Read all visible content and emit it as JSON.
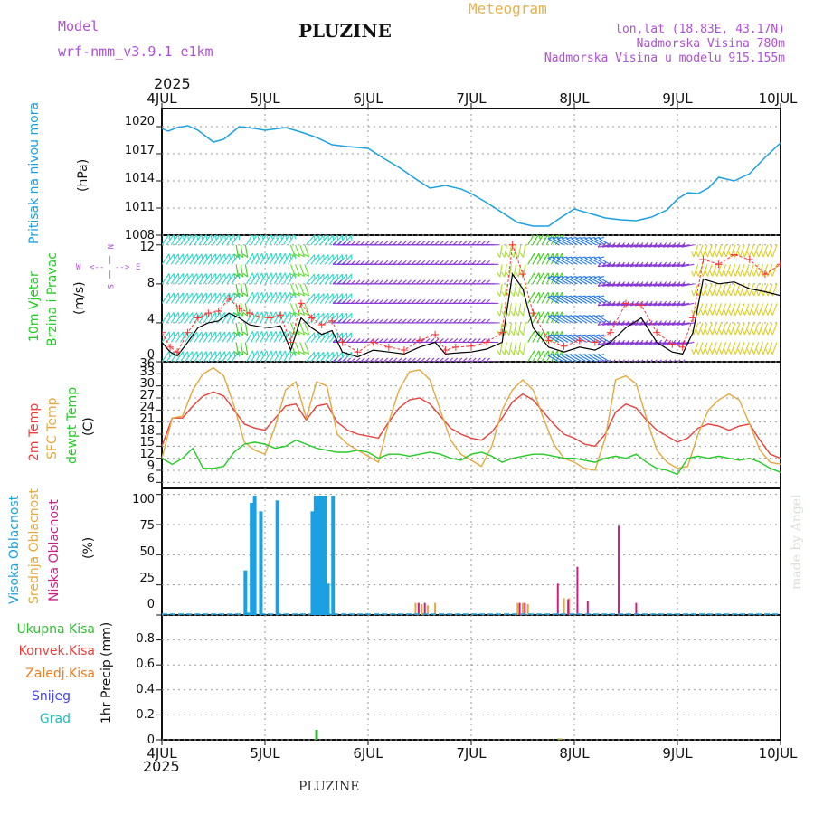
{
  "header": {
    "model_label": "Model",
    "model_name": "wrf-nmm_v3.9.1 e1km",
    "station_title": "PLUZINE",
    "product": "Meteogram",
    "lonlat": "lon,lat (18.83E, 43.17N)",
    "elevation": "Nadmorska Visina 780m",
    "model_elevation": "Nadmorska Visina u modelu 915.155m",
    "year_top": "2025",
    "year_bottom": "2025",
    "footer_station": "PLUZINE",
    "watermark": "made by Angel"
  },
  "colors": {
    "pressure": "#1ba1e2",
    "temp2m": "#e8413c",
    "sfc_temp": "#e6a83e",
    "dewpt": "#22cc22",
    "wind_speed": "#000000",
    "wind_gust": "#ff3030",
    "high_cloud": "#1ba1e2",
    "mid_cloud": "#e6a83e",
    "low_cloud": "#cc1f86",
    "total_precip": "#33bb33",
    "conv_precip": "#e8413c",
    "frz_precip": "#f07b1c",
    "snow": "#4444ee",
    "graupel": "#22bbbb",
    "purple_text": "#b04fd8",
    "title_gold": "#e8b04a"
  },
  "chart_data": [
    {
      "type": "line",
      "panel": "pressure",
      "ylabel_left": "Pritisak na nivou mora",
      "ylabel_unit": "(hPa)",
      "x_ticks": [
        "4JUL",
        "5JUL",
        "6JUL",
        "7JUL",
        "8JUL",
        "9JUL",
        "10JUL"
      ],
      "x_range_days": [
        0,
        6
      ],
      "ylim": [
        1008,
        1022
      ],
      "y_ticks": [
        "1008",
        "1011",
        "1014",
        "1017",
        "1020"
      ],
      "y_tick_values": [
        1008,
        1011,
        1014,
        1017,
        1020
      ],
      "grid": true,
      "series": [
        {
          "key": "pressure",
          "color_key": "pressure",
          "x": [
            0.0,
            0.06,
            0.15,
            0.25,
            0.35,
            0.5,
            0.6,
            0.75,
            0.9,
            1.0,
            1.2,
            1.35,
            1.5,
            1.65,
            1.8,
            2.0,
            2.15,
            2.3,
            2.45,
            2.6,
            2.75,
            2.9,
            3.0,
            3.15,
            3.3,
            3.45,
            3.6,
            3.75,
            3.85,
            4.0,
            4.15,
            4.3,
            4.45,
            4.6,
            4.75,
            4.9,
            5.0,
            5.1,
            5.2,
            5.3,
            5.4,
            5.55,
            5.7,
            5.85,
            6.0
          ],
          "y": [
            1019.8,
            1019.5,
            1019.9,
            1020.1,
            1019.6,
            1018.3,
            1018.6,
            1020.0,
            1019.8,
            1019.6,
            1019.9,
            1019.4,
            1018.8,
            1018.0,
            1017.8,
            1017.6,
            1016.5,
            1015.5,
            1014.3,
            1013.2,
            1013.5,
            1013.1,
            1012.6,
            1011.6,
            1010.5,
            1009.4,
            1009.0,
            1009.0,
            1009.8,
            1010.9,
            1010.4,
            1009.9,
            1009.7,
            1009.6,
            1010.0,
            1010.8,
            1012.0,
            1012.7,
            1012.6,
            1013.2,
            1014.4,
            1014.0,
            1014.8,
            1016.6,
            1018.2
          ]
        }
      ]
    },
    {
      "type": "line",
      "panel": "wind",
      "ylabel_left1": "10m Vjetar",
      "ylabel_left2": "Brzina i Pravac",
      "ylabel_unit": "(m/s)",
      "compass": {
        "n": "N",
        "s": "S",
        "e": "E",
        "w": "W",
        "arrow_w": "<--",
        "arrow_e": "-->",
        "bar": "|"
      },
      "ylim": [
        0,
        13
      ],
      "y_ticks": [
        "0",
        "4",
        "8",
        "12"
      ],
      "y_tick_values": [
        0,
        4,
        8,
        12
      ],
      "grid": true,
      "barb_levels": [
        0,
        2,
        4,
        6,
        8,
        10,
        12
      ],
      "barb_bands": [
        {
          "range": [
            0.0,
            0.72
          ],
          "dir_deg": 35,
          "color": "#2ad8c8"
        },
        {
          "range": [
            0.72,
            0.82
          ],
          "dir_deg": 170,
          "color": "#44cc22"
        },
        {
          "range": [
            0.82,
            1.25
          ],
          "dir_deg": 30,
          "color": "#2ad8c8"
        },
        {
          "range": [
            1.25,
            1.4
          ],
          "dir_deg": 160,
          "color": "#66dd33"
        },
        {
          "range": [
            1.4,
            1.78
          ],
          "dir_deg": 40,
          "color": "#2ad8c8"
        },
        {
          "range": [
            1.78,
            3.3
          ],
          "dir_deg": 270,
          "color": "#8a3ad8"
        },
        {
          "range": [
            3.3,
            3.55
          ],
          "dir_deg": 190,
          "color": "#aadd33"
        },
        {
          "range": [
            3.55,
            3.85
          ],
          "dir_deg": 30,
          "color": "#44cc22"
        },
        {
          "range": [
            3.85,
            4.35
          ],
          "dir_deg": 300,
          "color": "#2277ee"
        },
        {
          "range": [
            4.35,
            5.2
          ],
          "dir_deg": 260,
          "color": "#8a3ad8"
        },
        {
          "range": [
            5.2,
            6.0
          ],
          "dir_deg": 200,
          "color": "#ddcc22"
        }
      ],
      "series": [
        {
          "key": "wind_speed",
          "color_key": "wind_speed",
          "x": [
            0.0,
            0.08,
            0.15,
            0.25,
            0.35,
            0.45,
            0.55,
            0.65,
            0.75,
            0.85,
            0.95,
            1.05,
            1.15,
            1.25,
            1.35,
            1.45,
            1.55,
            1.65,
            1.75,
            1.9,
            2.05,
            2.2,
            2.35,
            2.5,
            2.65,
            2.75,
            2.85,
            3.0,
            3.15,
            3.3,
            3.4,
            3.5,
            3.6,
            3.75,
            3.9,
            4.05,
            4.2,
            4.35,
            4.5,
            4.65,
            4.8,
            4.95,
            5.05,
            5.15,
            5.25,
            5.4,
            5.55,
            5.7,
            5.85,
            6.0
          ],
          "y": [
            2.0,
            1.0,
            0.6,
            2.0,
            3.5,
            4.0,
            4.2,
            5.0,
            4.5,
            3.8,
            3.6,
            3.5,
            3.7,
            1.2,
            4.5,
            3.5,
            2.8,
            3.2,
            1.0,
            0.5,
            1.2,
            1.0,
            0.8,
            1.5,
            2.0,
            0.8,
            0.9,
            1.0,
            1.3,
            2.0,
            9.0,
            7.5,
            3.5,
            1.5,
            1.0,
            1.5,
            1.2,
            2.0,
            3.5,
            4.5,
            2.0,
            1.0,
            0.8,
            3.0,
            8.5,
            8.0,
            8.2,
            7.5,
            7.2,
            6.8
          ]
        },
        {
          "key": "wind_gust",
          "color_key": "wind_gust",
          "x": [
            0.0,
            0.08,
            0.15,
            0.25,
            0.35,
            0.45,
            0.55,
            0.65,
            0.75,
            0.85,
            0.95,
            1.05,
            1.15,
            1.25,
            1.35,
            1.45,
            1.55,
            1.65,
            1.75,
            1.9,
            2.05,
            2.2,
            2.35,
            2.5,
            2.65,
            2.75,
            2.85,
            3.0,
            3.15,
            3.3,
            3.4,
            3.5,
            3.6,
            3.75,
            3.9,
            4.05,
            4.2,
            4.35,
            4.5,
            4.65,
            4.8,
            4.95,
            5.05,
            5.15,
            5.25,
            5.4,
            5.55,
            5.7,
            5.85,
            6.0
          ],
          "y": [
            3.0,
            1.5,
            1.0,
            3.0,
            4.5,
            5.0,
            5.2,
            6.5,
            5.5,
            5.0,
            4.6,
            4.5,
            4.8,
            2.0,
            6.0,
            4.5,
            3.8,
            4.2,
            2.0,
            1.0,
            2.0,
            1.5,
            1.2,
            2.2,
            2.8,
            1.2,
            1.5,
            1.6,
            2.0,
            3.0,
            12.0,
            9.0,
            5.0,
            2.2,
            1.6,
            2.2,
            2.0,
            3.0,
            6.0,
            5.8,
            3.0,
            1.8,
            1.5,
            4.5,
            10.5,
            10.0,
            11.0,
            10.5,
            9.0,
            10.0
          ]
        }
      ]
    },
    {
      "type": "line",
      "panel": "temperature",
      "ylabel_left1": "2m Temp",
      "ylabel_left2": "SFC Temp",
      "ylabel_left3": "dewpt Temp",
      "ylabel_unit": "(C)",
      "ylim": [
        4.5,
        36
      ],
      "y_ticks": [
        "6",
        "9",
        "12",
        "15",
        "18",
        "21",
        "24",
        "27",
        "30",
        "33",
        "36"
      ],
      "y_tick_values": [
        6,
        9,
        12,
        15,
        18,
        21,
        24,
        27,
        30,
        33,
        36
      ],
      "grid": true,
      "series": [
        {
          "key": "temp2m",
          "color_key": "temp2m",
          "x": [
            0.0,
            0.1,
            0.2,
            0.3,
            0.4,
            0.5,
            0.6,
            0.7,
            0.8,
            0.9,
            1.0,
            1.1,
            1.2,
            1.3,
            1.4,
            1.5,
            1.6,
            1.7,
            1.8,
            1.9,
            2.0,
            2.1,
            2.2,
            2.3,
            2.4,
            2.5,
            2.6,
            2.7,
            2.8,
            2.9,
            3.0,
            3.1,
            3.2,
            3.3,
            3.4,
            3.5,
            3.6,
            3.7,
            3.8,
            3.9,
            4.0,
            4.1,
            4.2,
            4.3,
            4.4,
            4.5,
            4.6,
            4.7,
            4.8,
            4.9,
            5.0,
            5.1,
            5.2,
            5.3,
            5.4,
            5.5,
            5.6,
            5.7,
            5.8,
            5.9,
            6.0
          ],
          "y": [
            15.0,
            22.0,
            22.0,
            25.0,
            27.5,
            28.5,
            27.5,
            24.0,
            20.5,
            19.5,
            19.0,
            22.0,
            25.0,
            25.5,
            21.5,
            25.0,
            25.5,
            21.0,
            19.0,
            18.0,
            17.5,
            17.0,
            21.0,
            24.5,
            26.5,
            27.0,
            25.5,
            22.5,
            19.5,
            18.0,
            17.0,
            16.5,
            18.5,
            22.0,
            26.0,
            28.0,
            26.5,
            23.5,
            20.5,
            18.0,
            17.0,
            15.5,
            15.0,
            18.0,
            23.5,
            25.5,
            24.5,
            21.5,
            19.0,
            17.5,
            16.0,
            17.0,
            19.5,
            20.5,
            20.0,
            19.0,
            20.0,
            20.5,
            16.5,
            13.0,
            12.0
          ]
        },
        {
          "key": "sfc_temp",
          "color_key": "sfc_temp",
          "x": [
            0.0,
            0.1,
            0.2,
            0.3,
            0.4,
            0.5,
            0.6,
            0.7,
            0.8,
            0.9,
            1.0,
            1.1,
            1.2,
            1.3,
            1.4,
            1.5,
            1.6,
            1.7,
            1.8,
            1.9,
            2.0,
            2.1,
            2.2,
            2.3,
            2.4,
            2.5,
            2.6,
            2.7,
            2.8,
            2.9,
            3.0,
            3.1,
            3.2,
            3.3,
            3.4,
            3.5,
            3.6,
            3.7,
            3.8,
            3.9,
            4.0,
            4.1,
            4.2,
            4.3,
            4.4,
            4.5,
            4.6,
            4.7,
            4.8,
            4.9,
            5.0,
            5.1,
            5.2,
            5.3,
            5.4,
            5.5,
            5.6,
            5.7,
            5.8,
            5.9,
            6.0
          ],
          "y": [
            12.0,
            22.0,
            22.5,
            29.0,
            33.0,
            34.5,
            32.5,
            25.0,
            16.0,
            14.0,
            13.0,
            20.0,
            29.0,
            31.0,
            22.0,
            31.0,
            30.0,
            18.0,
            15.5,
            14.0,
            12.5,
            11.0,
            21.0,
            29.0,
            33.5,
            34.0,
            31.5,
            24.0,
            16.5,
            13.0,
            11.5,
            10.0,
            15.0,
            24.0,
            29.0,
            31.5,
            29.0,
            22.0,
            15.5,
            12.0,
            11.0,
            9.5,
            9.0,
            17.0,
            31.5,
            32.5,
            30.5,
            22.0,
            14.0,
            11.0,
            9.5,
            10.0,
            18.0,
            24.0,
            26.5,
            28.0,
            26.5,
            20.5,
            14.0,
            11.0,
            10.5
          ]
        },
        {
          "key": "dewpt",
          "color_key": "dewpt",
          "x": [
            0.0,
            0.1,
            0.2,
            0.3,
            0.4,
            0.5,
            0.6,
            0.7,
            0.8,
            0.9,
            1.0,
            1.1,
            1.2,
            1.3,
            1.4,
            1.5,
            1.6,
            1.7,
            1.8,
            1.9,
            2.0,
            2.1,
            2.2,
            2.3,
            2.4,
            2.5,
            2.6,
            2.7,
            2.8,
            2.9,
            3.0,
            3.1,
            3.2,
            3.3,
            3.4,
            3.5,
            3.6,
            3.7,
            3.8,
            3.9,
            4.0,
            4.1,
            4.2,
            4.3,
            4.4,
            4.5,
            4.6,
            4.7,
            4.8,
            4.9,
            5.0,
            5.1,
            5.2,
            5.3,
            5.4,
            5.5,
            5.6,
            5.7,
            5.8,
            5.9,
            6.0
          ],
          "y": [
            12.0,
            10.5,
            12.0,
            14.5,
            9.5,
            9.5,
            10.0,
            13.5,
            15.5,
            16.0,
            15.5,
            14.5,
            15.0,
            16.5,
            15.5,
            14.5,
            14.0,
            13.5,
            13.5,
            14.0,
            13.5,
            12.0,
            13.0,
            13.0,
            12.5,
            13.0,
            13.5,
            13.0,
            12.0,
            11.5,
            13.0,
            13.5,
            12.5,
            11.0,
            12.0,
            12.5,
            13.0,
            13.0,
            12.5,
            12.0,
            12.0,
            11.5,
            11.0,
            12.0,
            12.5,
            12.0,
            13.0,
            11.0,
            9.5,
            9.0,
            8.0,
            12.0,
            12.5,
            12.0,
            12.5,
            12.0,
            11.5,
            12.0,
            11.0,
            9.5,
            8.5
          ]
        }
      ]
    },
    {
      "type": "bar",
      "panel": "cloud",
      "ylabel_left1": "Visoka Oblacnost",
      "ylabel_left2": "Srednja Oblacnost",
      "ylabel_left3": "Niska Oblacnost",
      "ylabel_unit": "(%)",
      "ylim": [
        0,
        105
      ],
      "y_ticks": [
        "0",
        "25",
        "50",
        "75",
        "100"
      ],
      "y_tick_values": [
        0,
        25,
        50,
        75,
        100
      ],
      "grid": true,
      "series": [
        {
          "key": "high_cloud",
          "color_key": "high_cloud",
          "x": [
            0.81,
            0.84,
            0.87,
            0.9,
            0.96,
            1.12,
            1.46,
            1.49,
            1.52,
            1.55,
            1.58,
            1.61,
            1.66
          ],
          "values": [
            37,
            2,
            93,
            99,
            86,
            95,
            86,
            99,
            99,
            99,
            99,
            26,
            99
          ]
        },
        {
          "key": "mid_cloud",
          "color_key": "mid_cloud",
          "x": [
            2.46,
            2.52,
            2.58,
            2.65,
            3.45,
            3.5,
            3.55,
            3.9,
            3.95
          ],
          "values": [
            10,
            9,
            8,
            10,
            10,
            10,
            9,
            14,
            14
          ]
        },
        {
          "key": "low_cloud",
          "color_key": "low_cloud",
          "x": [
            2.49,
            2.55,
            3.47,
            3.52,
            3.84,
            3.94,
            4.03,
            4.13,
            4.43,
            4.6
          ],
          "values": [
            10,
            10,
            10,
            10,
            26,
            13,
            40,
            12,
            74,
            10
          ]
        }
      ]
    },
    {
      "type": "bar",
      "panel": "precip",
      "ylabel_left": "1hr Precip",
      "ylabel_unit": "(mm)",
      "ylim": [
        0,
        1.0
      ],
      "y_ticks": [
        "0",
        "0.2",
        "0.4",
        "0.6",
        "0.8"
      ],
      "y_tick_values": [
        0,
        0.2,
        0.4,
        0.6,
        0.8
      ],
      "grid": true,
      "legend": [
        "Ukupna Kisa",
        "Konvek.Kisa",
        "Zaledj.Kisa",
        "Snijeg",
        "Grad"
      ],
      "legend_color_keys": [
        "total_precip",
        "conv_precip",
        "frz_precip",
        "snow",
        "graupel"
      ],
      "series": [
        {
          "key": "total_precip",
          "color_key": "total_precip",
          "x": [
            1.5,
            3.85
          ],
          "values": [
            0.08,
            0.01
          ]
        },
        {
          "key": "frz_precip",
          "color_key": "frz_precip",
          "x": [
            3.87
          ],
          "values": [
            0.01
          ]
        }
      ]
    }
  ]
}
